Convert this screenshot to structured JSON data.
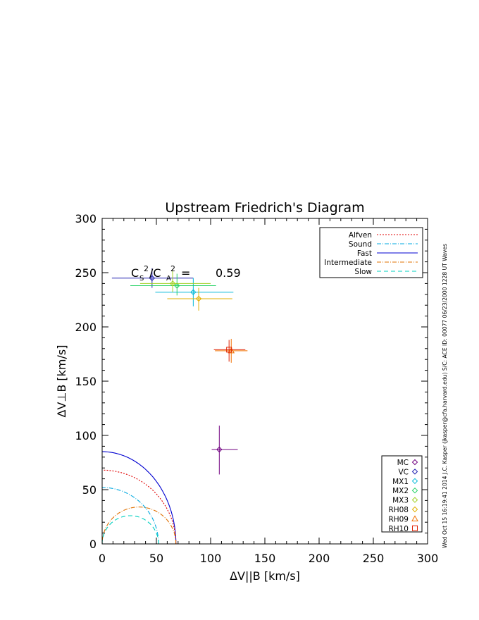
{
  "chart_data": {
    "type": "scatter",
    "title": "Upstream Friedrich's Diagram",
    "xlabel": "ΔV||B [km/s]",
    "ylabel": "ΔV⊥B [km/s]",
    "xlim": [
      0,
      300
    ],
    "ylim": [
      0,
      300
    ],
    "xticks": [
      "0",
      "50",
      "100",
      "150",
      "200",
      "250",
      "300"
    ],
    "yticks": [
      "0",
      "50",
      "100",
      "150",
      "200",
      "250",
      "300"
    ],
    "ratio_label": {
      "cs": "C",
      "cs_sub": "S",
      "sup1": "2",
      "slash": "/C",
      "ca_sub": "A",
      "sup2": "2",
      "eq": "=",
      "value": "0.59"
    },
    "side_text": "Wed Oct 15 16:19:41 2014   J.C. Kasper (jkasper@cfa.harvard.edu)   S/C: ACE ID: 00077 06/23/2000   1228 UT Waves",
    "curve_legend": {
      "placement": "top-right",
      "items": [
        {
          "label": "Alfven",
          "color": "#e00000",
          "dash": "2,2"
        },
        {
          "label": "Sound",
          "color": "#00a8e0",
          "dash": "6,2,1,2"
        },
        {
          "label": "Fast",
          "color": "#0000d0",
          "dash": ""
        },
        {
          "label": "Intermediate",
          "color": "#e07000",
          "dash": "6,2,1,2"
        },
        {
          "label": "Slow",
          "color": "#00d0c0",
          "dash": "6,4"
        }
      ]
    },
    "curves": {
      "fast_radius": 85,
      "fast_x_intercept": 68,
      "alfven_radius": 68,
      "sound_radius": 52,
      "intermediate_radius": 34,
      "slow_radius": 26
    },
    "point_legend": {
      "placement": "bottom-right",
      "items": [
        {
          "label": "MC",
          "color": "#700080",
          "symbol": "diamond"
        },
        {
          "label": "VC",
          "color": "#2020b0",
          "symbol": "diamond"
        },
        {
          "label": "MX1",
          "color": "#00b8d8",
          "symbol": "diamond"
        },
        {
          "label": "MX2",
          "color": "#20d060",
          "symbol": "diamond"
        },
        {
          "label": "MX3",
          "color": "#a0d020",
          "symbol": "diamond"
        },
        {
          "label": "RH08",
          "color": "#e0b000",
          "symbol": "diamond"
        },
        {
          "label": "RH09",
          "color": "#f07000",
          "symbol": "triangle"
        },
        {
          "label": "RH10",
          "color": "#e02000",
          "symbol": "square"
        }
      ]
    },
    "points": [
      {
        "name": "MC",
        "x": 108,
        "y": 87,
        "xerr": [
          101,
          125
        ],
        "yerr": [
          64,
          109
        ],
        "color": "#700080",
        "symbol": "diamond"
      },
      {
        "name": "VC",
        "x": 46,
        "y": 245,
        "xerr": [
          9,
          84
        ],
        "yerr": [
          236,
          254
        ],
        "color": "#2020b0",
        "symbol": "diamond"
      },
      {
        "name": "MX1",
        "x": 84,
        "y": 232,
        "xerr": [
          49,
          121
        ],
        "yerr": [
          219,
          245
        ],
        "color": "#00b8d8",
        "symbol": "diamond"
      },
      {
        "name": "MX2",
        "x": 69,
        "y": 238,
        "xerr": [
          26,
          105
        ],
        "yerr": [
          229,
          249
        ],
        "color": "#20d060",
        "symbol": "diamond"
      },
      {
        "name": "MX3",
        "x": 65,
        "y": 240,
        "xerr": [
          35,
          100
        ],
        "yerr": [
          232,
          252
        ],
        "color": "#a0d020",
        "symbol": "diamond"
      },
      {
        "name": "RH08",
        "x": 89,
        "y": 226,
        "xerr": [
          60,
          120
        ],
        "yerr": [
          215,
          236
        ],
        "color": "#e0b000",
        "symbol": "diamond"
      },
      {
        "name": "RH09",
        "x": 119,
        "y": 178,
        "xerr": [
          104,
          134
        ],
        "yerr": [
          167,
          189
        ],
        "color": "#f07000",
        "symbol": "triangle"
      },
      {
        "name": "RH10",
        "x": 117,
        "y": 179,
        "xerr": [
          103,
          132
        ],
        "yerr": [
          168,
          188
        ],
        "color": "#e02000",
        "symbol": "square"
      }
    ]
  }
}
